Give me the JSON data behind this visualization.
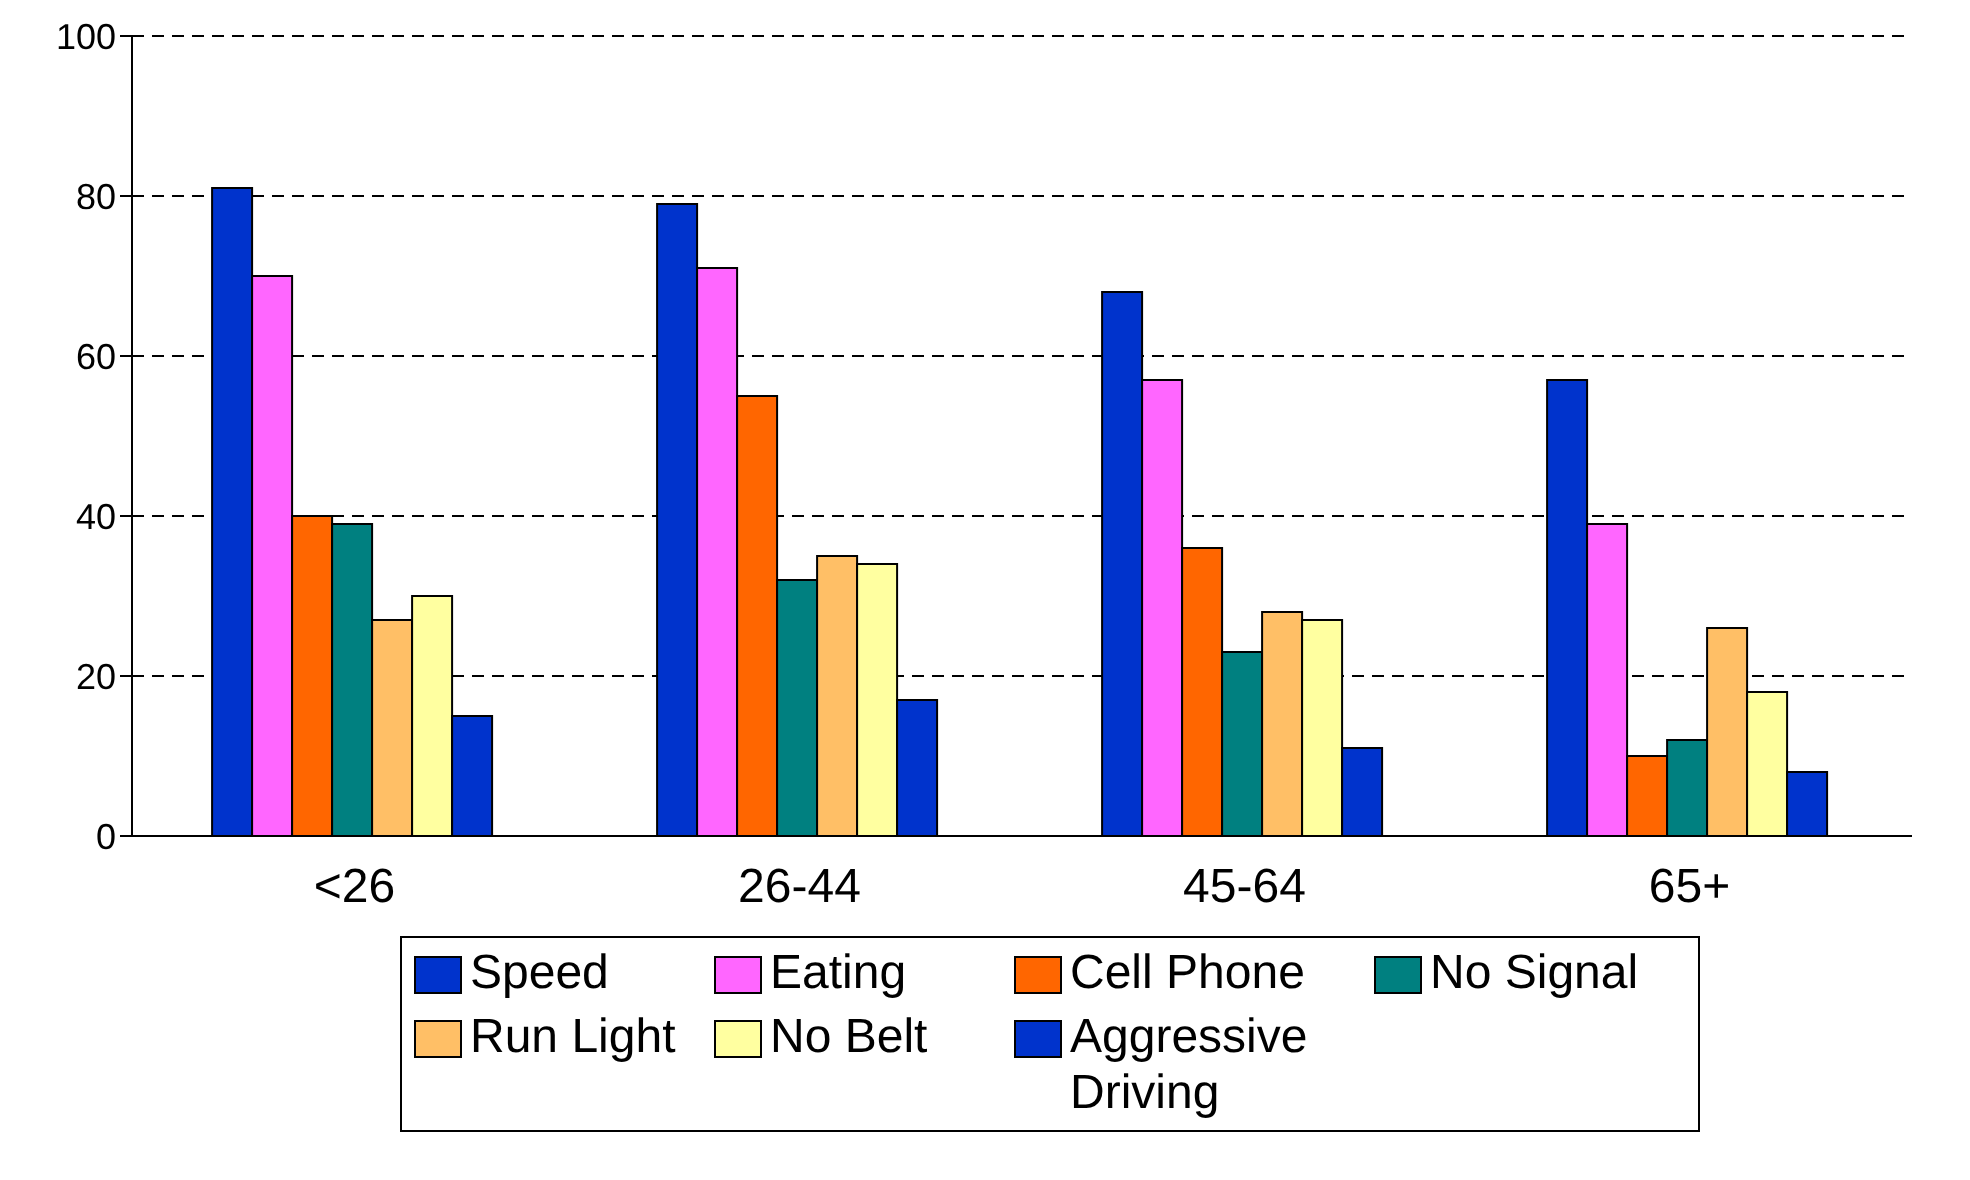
{
  "chart_data": {
    "type": "bar",
    "categories": [
      "<26",
      "26-44",
      "45-64",
      "65+"
    ],
    "series": [
      {
        "name": "Speed",
        "color": "#0033cc",
        "values": [
          81,
          79,
          68,
          57
        ]
      },
      {
        "name": "Eating",
        "color": "#ff66ff",
        "values": [
          70,
          71,
          57,
          39
        ]
      },
      {
        "name": "Cell Phone",
        "color": "#ff6600",
        "values": [
          40,
          55,
          36,
          10
        ]
      },
      {
        "name": "No Signal",
        "color": "#008080",
        "values": [
          39,
          32,
          23,
          12
        ]
      },
      {
        "name": "Run Light",
        "color": "#ffbf66",
        "values": [
          27,
          35,
          28,
          26
        ]
      },
      {
        "name": "No Belt",
        "color": "#ffffa0",
        "values": [
          30,
          34,
          27,
          18
        ]
      },
      {
        "name": "Aggressive Driving",
        "color": "#0033cc",
        "values": [
          15,
          17,
          11,
          8
        ]
      }
    ],
    "ylim": [
      0,
      100
    ],
    "yticks": [
      0,
      20,
      40,
      60,
      80,
      100
    ],
    "grid": "y",
    "legend": "bottom"
  }
}
